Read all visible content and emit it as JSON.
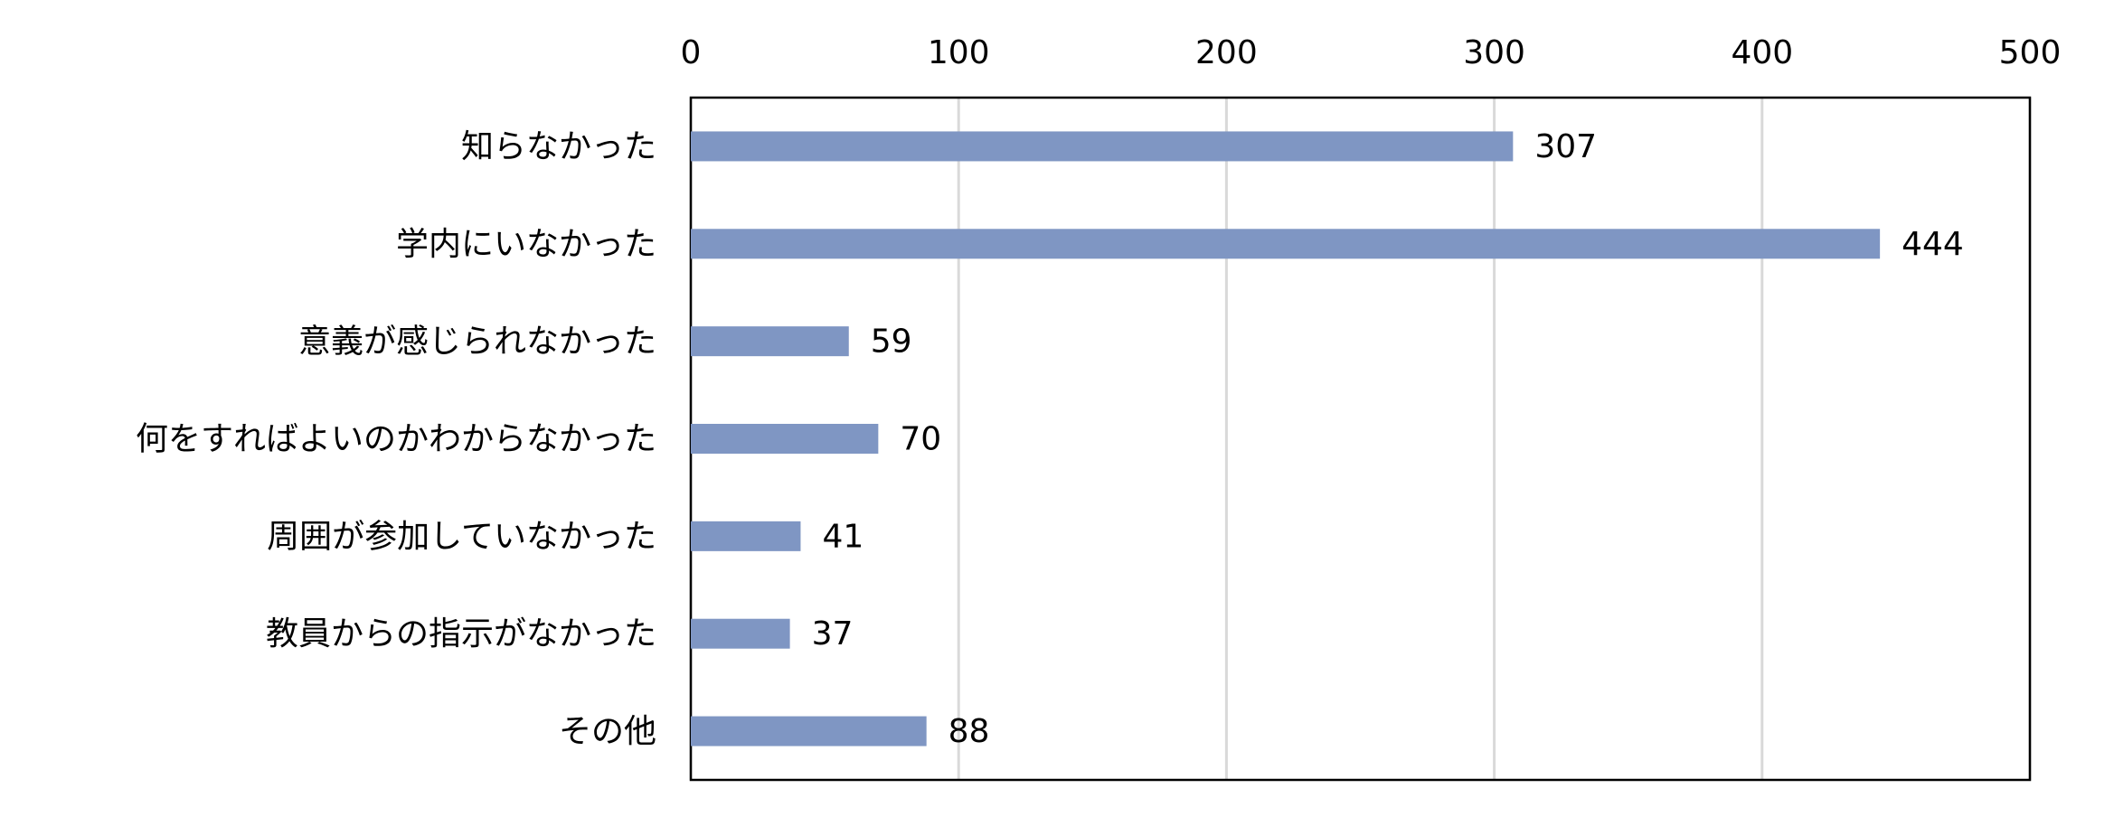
{
  "chart_data": {
    "type": "bar",
    "categories": [
      "知らなかった",
      "学内にいなかった",
      "意義が感じられなかった",
      "何をすればよいのかわからなかった",
      "周囲が参加していなかった",
      "教員からの指示がなかった",
      "その他"
    ],
    "values": [
      307,
      444,
      59,
      70,
      41,
      37,
      88
    ],
    "color": "#7f96c3",
    "xlim": [
      0,
      500
    ],
    "xticks": [
      0,
      100,
      200,
      300,
      400,
      500
    ],
    "grid": true
  }
}
